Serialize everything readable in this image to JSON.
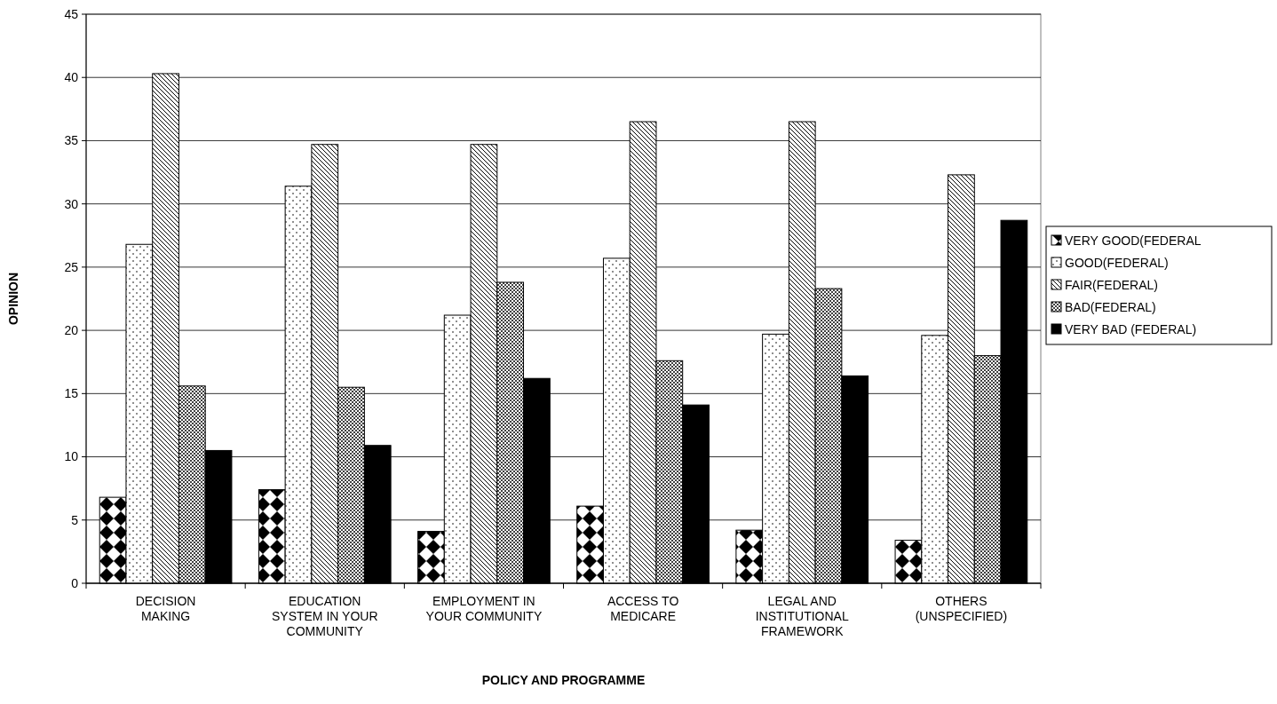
{
  "chart_data": {
    "type": "bar",
    "xlabel": "POLICY AND PROGRAMME",
    "ylabel": "OPINION",
    "categories": [
      "DECISION MAKING",
      "EDUCATION SYSTEM IN YOUR COMMUNITY",
      "EMPLOYMENT IN YOUR COMMUNITY",
      "ACCESS TO MEDICARE",
      "LEGAL AND INSTITUTIONAL FRAMEWORK",
      "OTHERS (UNSPECIFIED)"
    ],
    "series": [
      {
        "name": "VERY GOOD(FEDERAL",
        "color": "#000000",
        "values": [
          6.8,
          7.4,
          4.1,
          6.1,
          4.2,
          3.4
        ]
      },
      {
        "name": "GOOD(FEDERAL)",
        "color": "#000000",
        "values": [
          26.8,
          31.4,
          21.2,
          25.7,
          19.7,
          19.6
        ]
      },
      {
        "name": "FAIR(FEDERAL)",
        "color": "#000000",
        "values": [
          40.3,
          34.7,
          34.7,
          36.5,
          36.5,
          32.3
        ]
      },
      {
        "name": "BAD(FEDERAL)",
        "color": "#000000",
        "values": [
          15.6,
          15.5,
          23.8,
          17.6,
          23.3,
          18.0
        ]
      },
      {
        "name": "VERY BAD (FEDERAL)",
        "color": "#000000",
        "values": [
          10.5,
          10.9,
          16.2,
          14.1,
          16.4,
          28.7
        ]
      }
    ],
    "ylim": [
      0,
      45
    ],
    "yticks": [
      0,
      5,
      10,
      15,
      20,
      25,
      30,
      35,
      40,
      45
    ],
    "grid": "y",
    "legend": "right"
  }
}
